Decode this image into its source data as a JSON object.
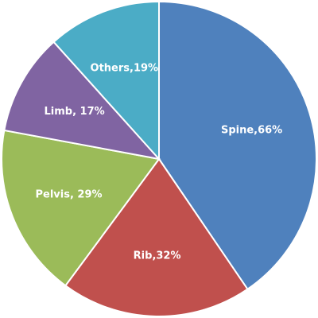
{
  "chart_data": {
    "type": "pie",
    "title": "",
    "slices": [
      {
        "label": "Spine,66%",
        "category": "Spine",
        "value": 66,
        "color": "#4F81BD"
      },
      {
        "label": "Rib,32%",
        "category": "Rib",
        "value": 32,
        "color": "#C0504D"
      },
      {
        "label": "Pelvis, 29%",
        "category": "Pelvis",
        "value": 29,
        "color": "#9BBB59"
      },
      {
        "label": "Limb, 17%",
        "category": "Limb",
        "value": 17,
        "color": "#8064A2"
      },
      {
        "label": "Others,19%",
        "category": "Others",
        "value": 19,
        "color": "#4BACC6"
      }
    ],
    "start_angle_deg": 0,
    "direction": "clockwise",
    "legend": "none",
    "slice_border_color": "#FFFFFF"
  }
}
